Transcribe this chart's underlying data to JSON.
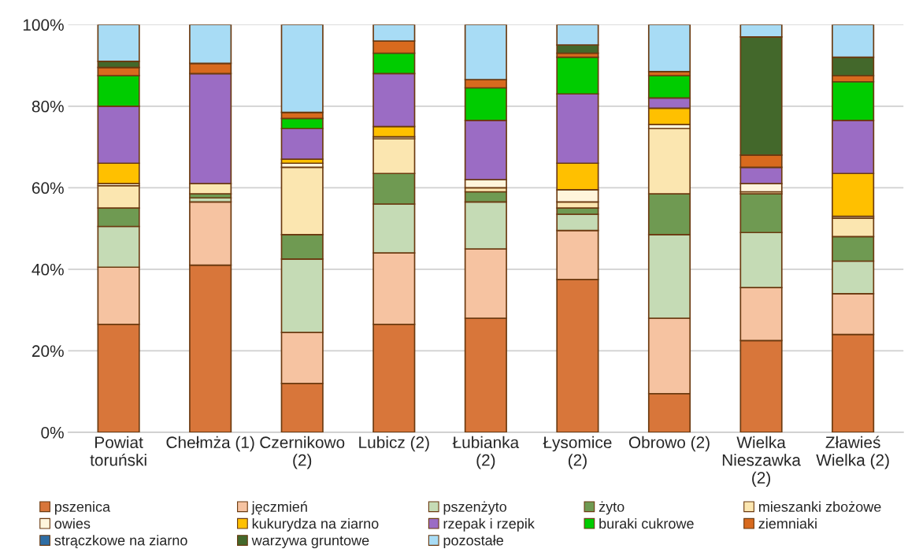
{
  "chart_data": {
    "type": "bar",
    "stacked": true,
    "categories": [
      "Powiat toruński",
      "Chełmża (1)",
      "Czernikowo (2)",
      "Lubicz (2)",
      "Łubianka (2)",
      "Łysomice (2)",
      "Obrowo (2)",
      "Wielka Nieszawka (2)",
      "Zławieś Wielka (2)"
    ],
    "ylim": [
      0,
      100
    ],
    "yticks": [
      {
        "value": 0,
        "label": "0%"
      },
      {
        "value": 20,
        "label": "20%"
      },
      {
        "value": 40,
        "label": "40%"
      },
      {
        "value": 60,
        "label": "60%"
      },
      {
        "value": 80,
        "label": "80%"
      },
      {
        "value": 100,
        "label": "100%"
      }
    ],
    "grid": "y",
    "legend": "bottom",
    "series": [
      {
        "name": "pszenica",
        "color": "#d8763a",
        "values": [
          26.5,
          41,
          12,
          26.5,
          28,
          37.5,
          9.5,
          22.5,
          24
        ]
      },
      {
        "name": "jęczmień",
        "color": "#f6c3a1",
        "values": [
          14,
          15.5,
          12.5,
          17.5,
          17,
          12,
          18.5,
          13,
          10
        ]
      },
      {
        "name": "pszenżyto",
        "color": "#c5dbb5",
        "values": [
          10,
          1,
          18,
          12,
          11.5,
          4,
          20.5,
          13.5,
          8
        ]
      },
      {
        "name": "żyto",
        "color": "#6f9a52",
        "values": [
          4.5,
          1,
          6,
          7.5,
          2.5,
          1.5,
          10,
          9.5,
          6
        ]
      },
      {
        "name": "mieszanki zbożowe",
        "color": "#fbe6b0",
        "values": [
          5.5,
          2.5,
          16.5,
          8.5,
          1,
          1.5,
          16,
          0.5,
          4.5
        ]
      },
      {
        "name": "owies",
        "color": "#fff5dc",
        "values": [
          0.5,
          0,
          1,
          0.5,
          2,
          3,
          1,
          2,
          0.5
        ]
      },
      {
        "name": "kukurydza na ziarno",
        "color": "#ffc000",
        "values": [
          5,
          0,
          1,
          2.5,
          0,
          6.5,
          4,
          0,
          10.5
        ]
      },
      {
        "name": "rzepak i rzepik",
        "color": "#9b6cc4",
        "values": [
          14,
          27,
          7.5,
          13,
          14.5,
          17,
          2.5,
          4,
          13
        ]
      },
      {
        "name": "buraki cukrowe",
        "color": "#00cc00",
        "values": [
          7.5,
          0,
          2.5,
          5,
          8,
          9,
          5.5,
          0,
          9.5
        ]
      },
      {
        "name": "ziemniaki",
        "color": "#d86a1e",
        "values": [
          2,
          2.5,
          1.5,
          3,
          2,
          1,
          1,
          3,
          1.5
        ]
      },
      {
        "name": "strączkowe na ziarno",
        "color": "#2e6da4",
        "values": [
          0,
          0,
          0,
          0,
          0,
          0,
          0,
          0,
          0
        ]
      },
      {
        "name": "warzywa gruntowe",
        "color": "#43682b",
        "values": [
          1.5,
          0,
          0,
          0,
          0,
          2,
          0,
          29,
          4.5
        ]
      },
      {
        "name": "pozostałe",
        "color": "#a8dcf5",
        "values": [
          9,
          9.5,
          21.5,
          4,
          13.5,
          5,
          11.5,
          3,
          8
        ]
      }
    ]
  }
}
